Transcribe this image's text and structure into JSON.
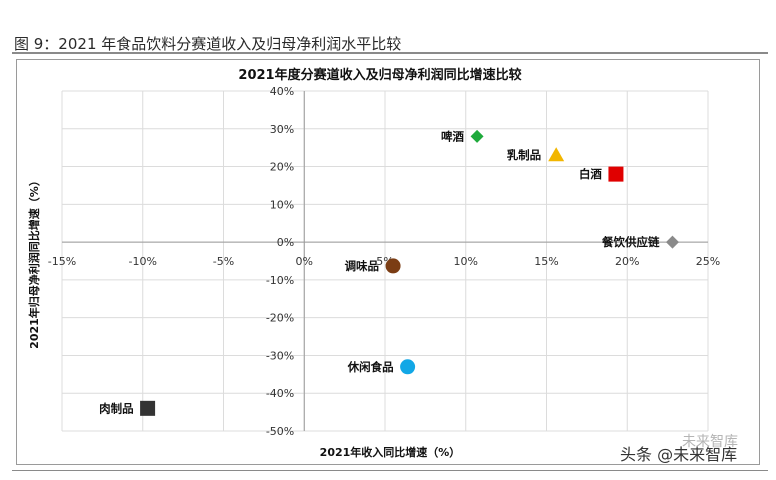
{
  "figure_caption": "图 9：2021 年食品饮料分赛道收入及归母净利润水平比较",
  "watermark": {
    "main": "头条 @未来智库",
    "sub": "未来智库"
  },
  "chart_data": {
    "type": "scatter",
    "title": "2021年度分赛道收入及归母净利润同比增速比较",
    "xlabel": "2021年收入同比增速（%）",
    "ylabel": "2021年归母净利润同比增速（%）",
    "xlim": [
      -0.15,
      0.25
    ],
    "ylim": [
      -0.5,
      0.4
    ],
    "xticks": [
      -0.15,
      -0.1,
      -0.05,
      0.0,
      0.05,
      0.1,
      0.15,
      0.2,
      0.25
    ],
    "yticks": [
      0.4,
      0.3,
      0.2,
      0.1,
      0.0,
      -0.1,
      -0.2,
      -0.3,
      -0.4,
      -0.5
    ],
    "xtick_labels": [
      "-15%",
      "-10%",
      "-5%",
      "0%",
      "5%",
      "10%",
      "15%",
      "20%",
      "25%"
    ],
    "ytick_labels": [
      "40%",
      "30%",
      "20%",
      "10%",
      "0%",
      "-10%",
      "-20%",
      "-30%",
      "-40%",
      "-50%"
    ],
    "grid": true,
    "points": [
      {
        "label": "啤酒",
        "x": 0.107,
        "y": 0.28,
        "marker": "diamond",
        "color": "#1faa3c",
        "label_side": "left"
      },
      {
        "label": "乳制品",
        "x": 0.156,
        "y": 0.23,
        "marker": "triangle",
        "color": "#f2b600",
        "label_side": "left"
      },
      {
        "label": "白酒",
        "x": 0.193,
        "y": 0.18,
        "marker": "square",
        "color": "#e00000",
        "label_side": "left"
      },
      {
        "label": "餐饮供应链",
        "x": 0.228,
        "y": 0.0,
        "marker": "diamond",
        "color": "#8a8a8a",
        "label_side": "left"
      },
      {
        "label": "调味品",
        "x": 0.055,
        "y": -0.063,
        "marker": "circle",
        "color": "#7b3d14",
        "label_side": "left"
      },
      {
        "label": "休闲食品",
        "x": 0.064,
        "y": -0.33,
        "marker": "circle",
        "color": "#12a7e6",
        "label_side": "left"
      },
      {
        "label": "肉制品",
        "x": -0.097,
        "y": -0.44,
        "marker": "square",
        "color": "#333333",
        "label_side": "left"
      }
    ]
  }
}
